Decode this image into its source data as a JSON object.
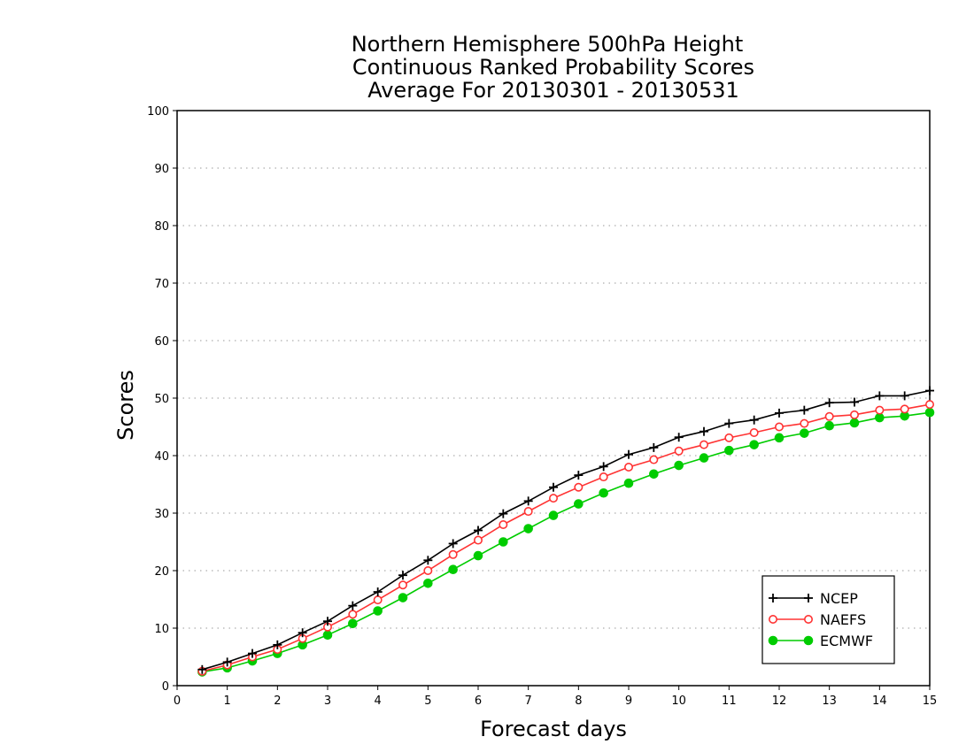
{
  "chart_data": {
    "type": "line",
    "title_lines": [
      "Northern Hemisphere 500hPa Height",
      "Continuous Ranked Probability Scores",
      "Average For 20130301 - 20130531"
    ],
    "xlabel": "Forecast days",
    "ylabel": "Scores",
    "xlim": [
      0,
      15
    ],
    "ylim": [
      0,
      100
    ],
    "x_ticks": [
      "0",
      "1",
      "2",
      "3",
      "4",
      "5",
      "6",
      "7",
      "8",
      "9",
      "10",
      "11",
      "12",
      "13",
      "14",
      "15"
    ],
    "y_ticks": [
      "0",
      "10",
      "20",
      "30",
      "40",
      "50",
      "60",
      "70",
      "80",
      "90",
      "100"
    ],
    "grid": "horizontal dotted",
    "legend_position": "bottom-right",
    "x": [
      0.5,
      1,
      1.5,
      2,
      2.5,
      3,
      3.5,
      4,
      4.5,
      5,
      5.5,
      6,
      6.5,
      7,
      7.5,
      8,
      8.5,
      9,
      9.5,
      10,
      10.5,
      11,
      11.5,
      12,
      12.5,
      13,
      13.5,
      14,
      14.5,
      15
    ],
    "series": [
      {
        "name": "NCEP",
        "color": "#000000",
        "marker": "plus",
        "values": [
          2.8,
          4.1,
          5.6,
          7.1,
          9.2,
          11.2,
          13.9,
          16.3,
          19.2,
          21.8,
          24.7,
          27.0,
          29.9,
          32.1,
          34.5,
          36.6,
          38.1,
          40.2,
          41.4,
          43.2,
          44.2,
          45.6,
          46.2,
          47.4,
          47.9,
          49.2,
          49.3,
          50.4,
          50.4,
          51.3
        ]
      },
      {
        "name": "NAEFS",
        "color": "#ff3333",
        "marker": "open-circle",
        "values": [
          2.5,
          3.6,
          5.0,
          6.3,
          8.2,
          10.2,
          12.4,
          14.9,
          17.5,
          20.0,
          22.8,
          25.3,
          28.0,
          30.3,
          32.6,
          34.5,
          36.3,
          38.0,
          39.3,
          40.8,
          41.9,
          43.1,
          44.0,
          45.0,
          45.6,
          46.8,
          47.1,
          47.9,
          48.1,
          48.9
        ]
      },
      {
        "name": "ECMWF",
        "color": "#00cc00",
        "marker": "filled-circle",
        "values": [
          2.4,
          3.1,
          4.3,
          5.6,
          7.1,
          8.8,
          10.8,
          13.0,
          15.3,
          17.8,
          20.2,
          22.6,
          25.0,
          27.3,
          29.6,
          31.6,
          33.5,
          35.2,
          36.8,
          38.3,
          39.6,
          40.9,
          41.9,
          43.1,
          43.9,
          45.2,
          45.7,
          46.6,
          46.9,
          47.5
        ]
      }
    ]
  }
}
